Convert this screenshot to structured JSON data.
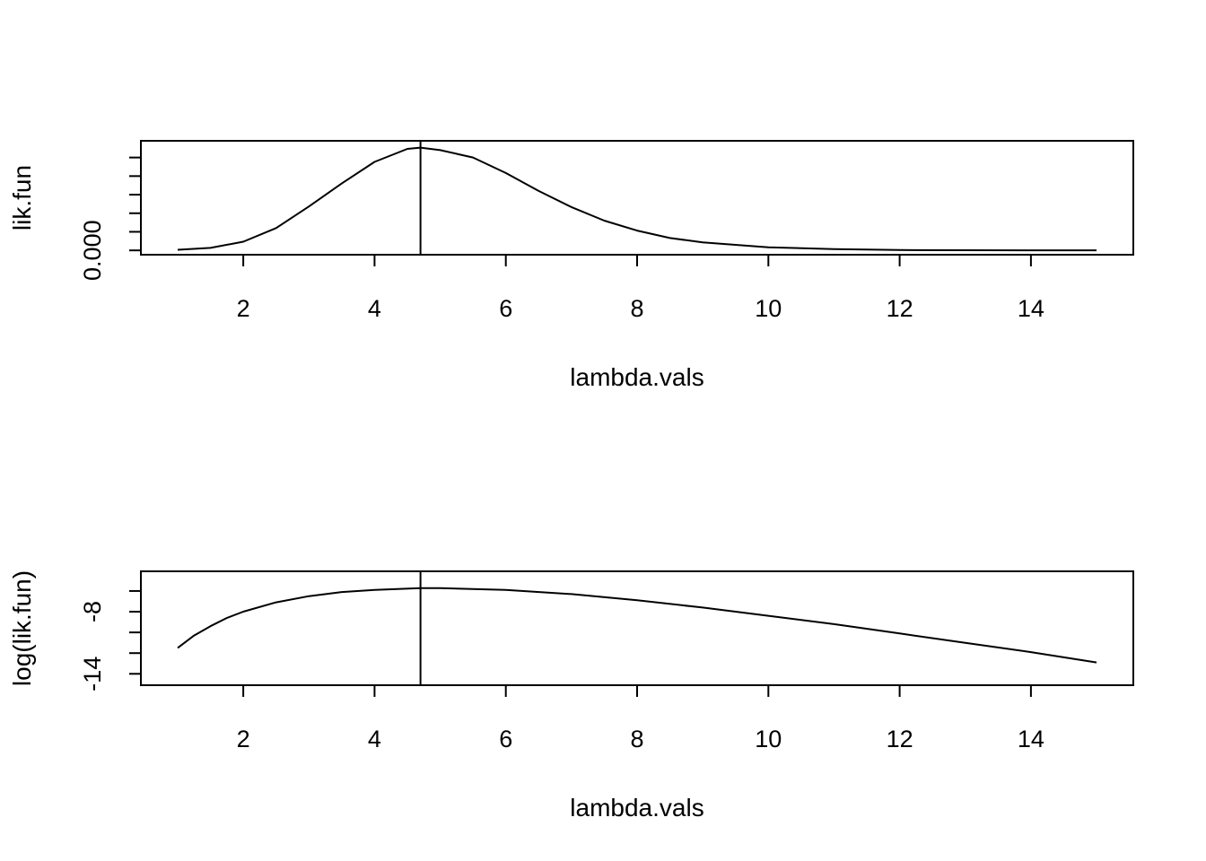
{
  "chart_data": [
    {
      "type": "line",
      "xlabel": "lambda.vals",
      "ylabel": "lik.fun",
      "xlim": [
        0.44,
        15.56
      ],
      "ylim": [
        -7e-05,
        0.00177
      ],
      "x_ticks": [
        2,
        4,
        6,
        8,
        10,
        12,
        14
      ],
      "x_tick_labels": [
        "2",
        "4",
        "6",
        "8",
        "10",
        "12",
        "14"
      ],
      "y_ticks": [
        0.0,
        0.0003,
        0.0006,
        0.0009,
        0.0012,
        0.0015
      ],
      "y_tick_labels": [
        "0.000",
        "",
        "",
        "",
        "",
        ""
      ],
      "grid": false,
      "vline_x": 4.7,
      "series": [
        {
          "x": [
            1,
            1.5,
            2,
            2.5,
            3,
            3.5,
            4,
            4.5,
            4.7,
            5,
            5.5,
            6,
            6.5,
            7,
            7.5,
            8,
            8.5,
            9,
            10,
            11,
            12,
            13,
            14,
            15
          ],
          "y": [
            1e-05,
            4e-05,
            0.00014,
            0.00036,
            0.00071,
            0.00108,
            0.00143,
            0.00164,
            0.00166,
            0.00162,
            0.0015,
            0.00125,
            0.00096,
            0.0007,
            0.00048,
            0.00032,
            0.0002,
            0.00013,
            5e-05,
            2e-05,
            5e-06,
            2e-06,
            1e-06,
            3e-07
          ]
        }
      ]
    },
    {
      "type": "line",
      "xlabel": "lambda.vals",
      "ylabel": "log(lik.fun)",
      "xlim": [
        0.44,
        15.56
      ],
      "ylim": [
        -15.1,
        -4.1
      ],
      "x_ticks": [
        2,
        4,
        6,
        8,
        10,
        12,
        14
      ],
      "x_tick_labels": [
        "2",
        "4",
        "6",
        "8",
        "10",
        "12",
        "14"
      ],
      "y_ticks": [
        -14,
        -12,
        -10,
        -8,
        -6
      ],
      "y_tick_labels": [
        "-14",
        "",
        "",
        "-8",
        ""
      ],
      "grid": false,
      "vline_x": 4.7,
      "series": [
        {
          "x": [
            1,
            1.25,
            1.5,
            1.75,
            2,
            2.5,
            3,
            3.5,
            4,
            4.7,
            5,
            6,
            7,
            8,
            9,
            10,
            11,
            12,
            13,
            14,
            15
          ],
          "y": [
            -11.5,
            -10.3,
            -9.4,
            -8.6,
            -8.0,
            -7.1,
            -6.5,
            -6.1,
            -5.9,
            -5.72,
            -5.73,
            -5.9,
            -6.3,
            -6.9,
            -7.6,
            -8.4,
            -9.2,
            -10.1,
            -11.0,
            -11.9,
            -12.9
          ]
        }
      ]
    }
  ]
}
